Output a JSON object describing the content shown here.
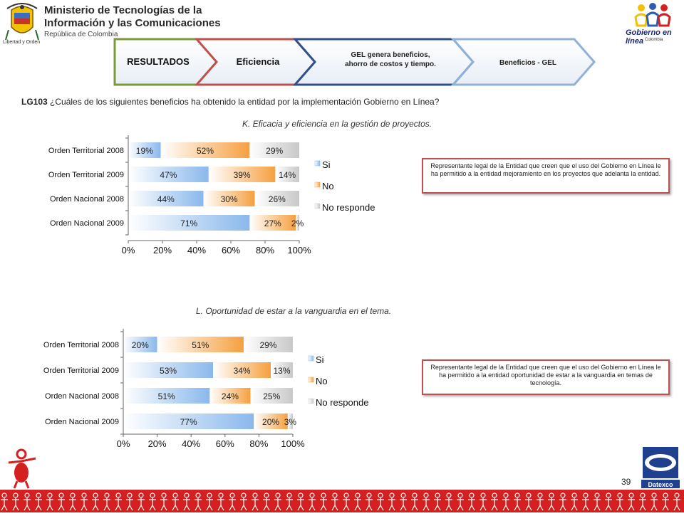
{
  "header": {
    "ministry_line1": "Ministerio de Tecnologías de la",
    "ministry_line2": "Información y las Comunicaciones",
    "ministry_line3": "República de Colombia",
    "motto": "Libertad y Orden",
    "gel_logo_text": "Gobierno en línea",
    "gel_logo_sub": "Colombia"
  },
  "nav": {
    "tabs": [
      {
        "label": "RESULTADOS",
        "color": "#7a9a3a"
      },
      {
        "label": "Eficiencia",
        "color": "#c0504d"
      },
      {
        "label": "GEL genera beneficios, ahorro de costos y tiempo.",
        "color": "#2f4f8f"
      },
      {
        "label": "Beneficios - GEL",
        "color": "#8fb0d8"
      }
    ]
  },
  "question": {
    "code": "LG103",
    "text": "¿Cuáles de los siguientes beneficios ha obtenido la entidad por la implementación Gobierno en Línea?"
  },
  "colors": {
    "si": "#8ab8ec",
    "no": "#f5a040",
    "no_responde": "#c8c8c8",
    "note_border": "#c0504d",
    "footer": "#d42020"
  },
  "chart_data": [
    {
      "type": "bar",
      "orientation": "horizontal",
      "stacked": "percent",
      "title": "K. Eficacia y eficiencia en la gestión de proyectos.",
      "categories": [
        "Orden Territorial 2008",
        "Orden Territorial 2009",
        "Orden Nacional 2008",
        "Orden Nacional 2009"
      ],
      "series": [
        {
          "name": "Si",
          "values": [
            19,
            47,
            44,
            71
          ]
        },
        {
          "name": "No",
          "values": [
            52,
            39,
            30,
            27
          ]
        },
        {
          "name": "No responde",
          "values": [
            29,
            14,
            26,
            2
          ]
        }
      ],
      "data_labels": [
        [
          "19%",
          "52%",
          "29%"
        ],
        [
          "47%",
          "39%",
          "14%"
        ],
        [
          "44%",
          "30%",
          "26%"
        ],
        [
          "71%",
          "27%",
          "2%"
        ]
      ],
      "xlim": [
        0,
        100
      ],
      "xticks": [
        "0%",
        "20%",
        "40%",
        "60%",
        "80%",
        "100%"
      ],
      "legend": "right",
      "note": "Representante legal de la Entidad que creen que el uso del Gobierno en Línea le ha permitido a la entidad mejoramiento en los proyectos que adelanta la entidad."
    },
    {
      "type": "bar",
      "orientation": "horizontal",
      "stacked": "percent",
      "title": "L. Oportunidad de estar a la vanguardia  en el tema.",
      "categories": [
        "Orden Territorial 2008",
        "Orden Territorial 2009",
        "Orden Nacional 2008",
        "Orden Nacional 2009"
      ],
      "series": [
        {
          "name": "Si",
          "values": [
            20,
            53,
            51,
            77
          ]
        },
        {
          "name": "No",
          "values": [
            51,
            34,
            24,
            20
          ]
        },
        {
          "name": "No responde",
          "values": [
            29,
            13,
            25,
            3
          ]
        }
      ],
      "data_labels": [
        [
          "20%",
          "51%",
          "29%"
        ],
        [
          "53%",
          "34%",
          "13%"
        ],
        [
          "51%",
          "24%",
          "25%"
        ],
        [
          "77%",
          "20%",
          "3%"
        ]
      ],
      "xlim": [
        0,
        100
      ],
      "xticks": [
        "0%",
        "20%",
        "40%",
        "60%",
        "80%",
        "100%"
      ],
      "legend": "right",
      "note": "Representante legal de la Entidad que creen que el uso del Gobierno en Línea le ha permitido a la entidad oportunidad de estar a la vanguardia en temas de tecnología."
    }
  ],
  "page_number": "39",
  "footer_logo": "Datexco"
}
